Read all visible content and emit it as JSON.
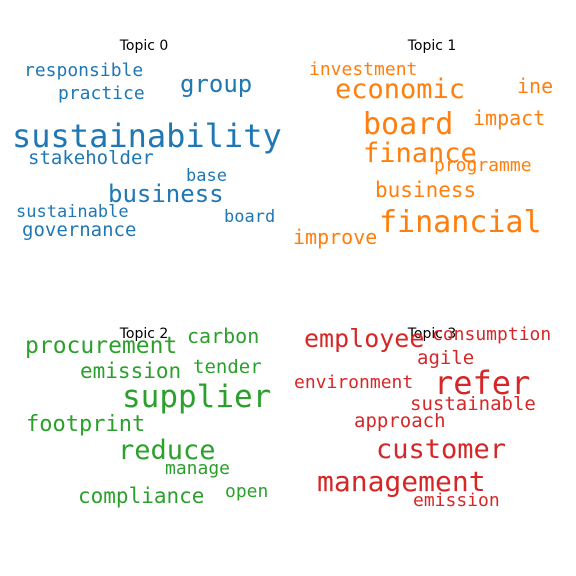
{
  "topics": [
    {
      "title": "Topic 0",
      "color": "#1f77b4",
      "words": [
        "responsible",
        "practice",
        "group",
        "sustainability",
        "stakeholder",
        "base",
        "business",
        "sustainable",
        "board",
        "governance"
      ]
    },
    {
      "title": "Topic 1",
      "color": "#ff7f0e",
      "words": [
        "investment",
        "economic",
        "ine",
        "board",
        "impact",
        "finance",
        "programme",
        "business",
        "financial",
        "improve"
      ]
    },
    {
      "title": "Topic 2",
      "color": "#2ca02c",
      "words": [
        "carbon",
        "procurement",
        "tender",
        "emission",
        "supplier",
        "footprint",
        "reduce",
        "manage",
        "compliance",
        "open"
      ]
    },
    {
      "title": "Topic 3",
      "color": "#d62728",
      "words": [
        "employee",
        "consumption",
        "agile",
        "environment",
        "refer",
        "sustainable",
        "approach",
        "customer",
        "management",
        "emission"
      ]
    }
  ]
}
